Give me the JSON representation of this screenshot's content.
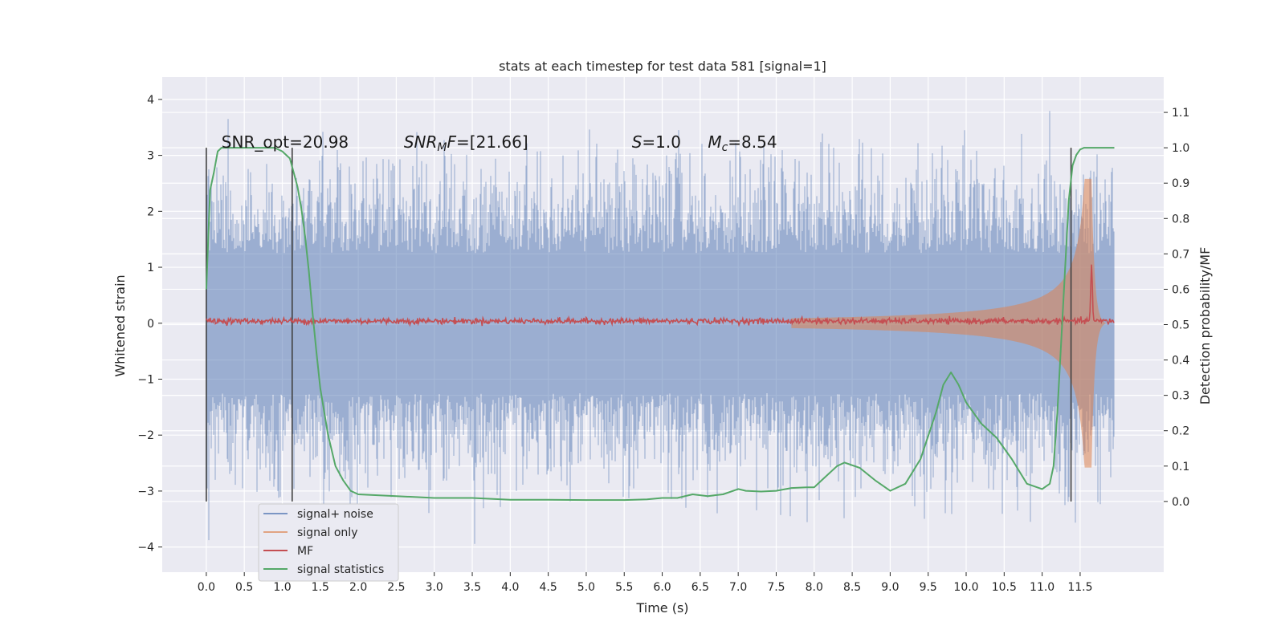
{
  "chart_data": {
    "type": "line",
    "title": "stats at each timestep for test data 581 [signal=1]",
    "xlabel": "Time (s)",
    "ylabel": "Whitened strain",
    "y2label": "Detection probability/MF",
    "xlim": [
      -0.58,
      12.6
    ],
    "ylim": [
      -4.45,
      4.4
    ],
    "y2lim": [
      -0.2,
      1.2
    ],
    "xticks": [
      "0.0",
      "0.5",
      "1.0",
      "1.5",
      "2.0",
      "2.5",
      "3.0",
      "3.5",
      "4.0",
      "4.5",
      "5.0",
      "5.5",
      "6.0",
      "6.5",
      "7.0",
      "7.5",
      "8.0",
      "8.5",
      "9.0",
      "9.5",
      "10.0",
      "10.5",
      "11.0",
      "11.5"
    ],
    "yticks": [
      "4",
      "3",
      "2",
      "1",
      "0",
      "−1",
      "−2",
      "−3",
      "−4"
    ],
    "y2ticks": [
      "1.1",
      "1.0",
      "0.9",
      "0.8",
      "0.7",
      "0.6",
      "0.5",
      "0.4",
      "0.3",
      "0.2",
      "0.1",
      "0.0"
    ],
    "grid": true,
    "legend_position": "lower-left",
    "annotations": [
      {
        "text": "SNR_opt=20.98",
        "x": 0.2
      },
      {
        "text": "SNR_MF=[21.66]",
        "x": 2.6
      },
      {
        "text": "S=1.0",
        "x": 5.6
      },
      {
        "text": "M_c=8.54",
        "x": 6.6
      }
    ],
    "vlines": [
      0.0,
      1.13,
      11.38
    ],
    "series": [
      {
        "name": "signal+ noise",
        "color": "#4c72b0",
        "description_values": {
          "envelope_max": 4.0,
          "envelope_min": -4.1,
          "t_start": 0.0,
          "t_end": 11.95
        }
      },
      {
        "name": "signal only",
        "color": "#dd8452",
        "chirp": {
          "t_start": 7.7,
          "t_merger": 11.65,
          "t_end": 11.95,
          "peak_amplitude": 2.6
        }
      },
      {
        "name": "MF",
        "color": "#c44e52",
        "axis": "right",
        "baseline": 0.51,
        "peak": {
          "x": 11.65,
          "y": 0.67
        }
      },
      {
        "name": "signal statistics",
        "color": "#55a868",
        "axis": "right",
        "x": [
          0.0,
          0.05,
          0.1,
          0.15,
          0.2,
          0.3,
          0.5,
          0.7,
          0.9,
          1.0,
          1.05,
          1.1,
          1.15,
          1.2,
          1.25,
          1.3,
          1.35,
          1.4,
          1.45,
          1.5,
          1.6,
          1.7,
          1.8,
          1.9,
          2.0,
          2.5,
          3.0,
          3.5,
          4.0,
          4.5,
          5.0,
          5.5,
          5.8,
          6.0,
          6.2,
          6.4,
          6.6,
          6.8,
          7.0,
          7.1,
          7.3,
          7.5,
          7.7,
          7.9,
          8.0,
          8.1,
          8.3,
          8.4,
          8.6,
          8.8,
          9.0,
          9.2,
          9.4,
          9.6,
          9.7,
          9.8,
          9.9,
          10.0,
          10.2,
          10.4,
          10.6,
          10.8,
          11.0,
          11.1,
          11.15,
          11.2,
          11.25,
          11.3,
          11.35,
          11.4,
          11.45,
          11.5,
          11.55,
          11.6,
          11.7,
          11.8,
          11.9,
          11.95
        ],
        "y": [
          0.6,
          0.88,
          0.93,
          0.99,
          1.0,
          1.0,
          1.0,
          1.0,
          1.0,
          0.99,
          0.98,
          0.97,
          0.93,
          0.89,
          0.83,
          0.75,
          0.65,
          0.53,
          0.42,
          0.32,
          0.19,
          0.1,
          0.06,
          0.03,
          0.02,
          0.015,
          0.01,
          0.01,
          0.005,
          0.005,
          0.004,
          0.004,
          0.006,
          0.01,
          0.01,
          0.02,
          0.015,
          0.02,
          0.035,
          0.03,
          0.028,
          0.03,
          0.038,
          0.04,
          0.04,
          0.06,
          0.1,
          0.11,
          0.095,
          0.06,
          0.03,
          0.05,
          0.12,
          0.25,
          0.33,
          0.365,
          0.33,
          0.28,
          0.22,
          0.18,
          0.12,
          0.05,
          0.035,
          0.05,
          0.1,
          0.25,
          0.45,
          0.65,
          0.85,
          0.95,
          0.98,
          0.995,
          1.0,
          1.0,
          1.0,
          1.0,
          1.0,
          1.0
        ]
      }
    ]
  }
}
